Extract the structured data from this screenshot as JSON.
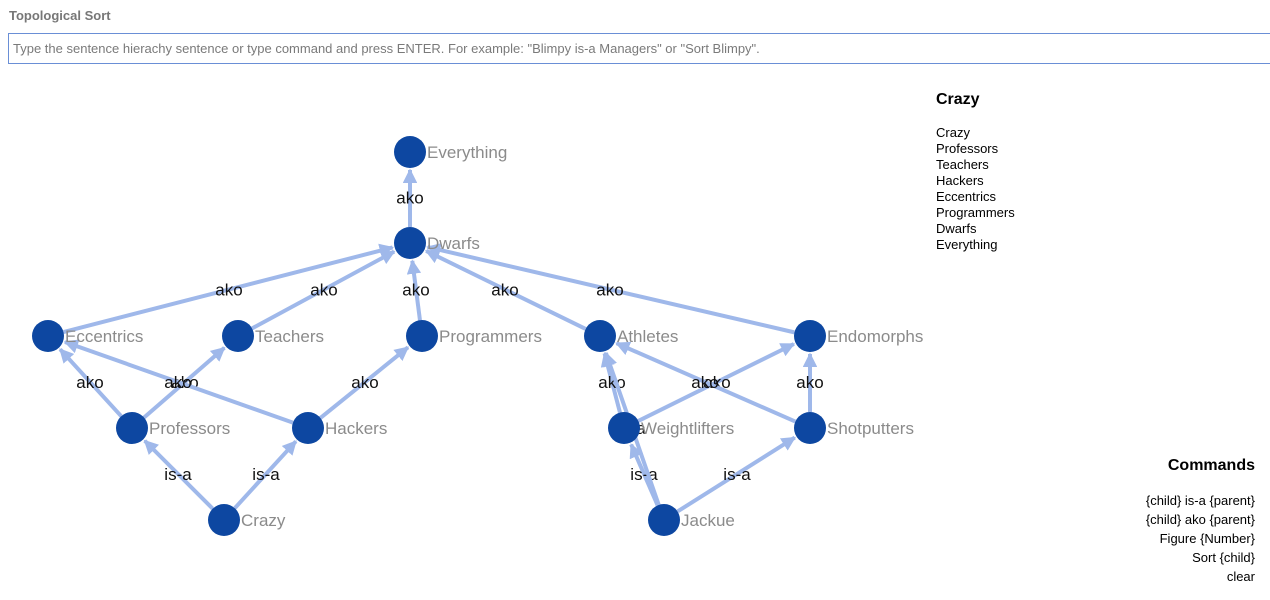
{
  "app": {
    "title": "Topological Sort"
  },
  "command_input": {
    "placeholder": "Type the sentence hierachy sentence or type command and press ENTER. For example: \"Blimpy is-a Managers\" or \"Sort Blimpy\".",
    "value": ""
  },
  "colors": {
    "node": "#0d47a1",
    "edge": "#9fb8ea",
    "node_label": "#8b8b8b"
  },
  "graph": {
    "nodes": [
      {
        "id": "Everything",
        "label": "Everything"
      },
      {
        "id": "Dwarfs",
        "label": "Dwarfs"
      },
      {
        "id": "Eccentrics",
        "label": "Eccentrics"
      },
      {
        "id": "Teachers",
        "label": "Teachers"
      },
      {
        "id": "Programmers",
        "label": "Programmers"
      },
      {
        "id": "Athletes",
        "label": "Athletes"
      },
      {
        "id": "Endomorphs",
        "label": "Endomorphs"
      },
      {
        "id": "Professors",
        "label": "Professors"
      },
      {
        "id": "Hackers",
        "label": "Hackers"
      },
      {
        "id": "Weightlifters",
        "label": "Weightlifters"
      },
      {
        "id": "Shotputters",
        "label": "Shotputters"
      },
      {
        "id": "Crazy",
        "label": "Crazy"
      },
      {
        "id": "Jackue",
        "label": "Jackue"
      }
    ],
    "edges": [
      {
        "from": "Dwarfs",
        "to": "Everything",
        "label": "ako"
      },
      {
        "from": "Eccentrics",
        "to": "Dwarfs",
        "label": "ako"
      },
      {
        "from": "Teachers",
        "to": "Dwarfs",
        "label": "ako"
      },
      {
        "from": "Programmers",
        "to": "Dwarfs",
        "label": "ako"
      },
      {
        "from": "Athletes",
        "to": "Dwarfs",
        "label": "ako"
      },
      {
        "from": "Endomorphs",
        "to": "Dwarfs",
        "label": "ako"
      },
      {
        "from": "Professors",
        "to": "Eccentrics",
        "label": "ako"
      },
      {
        "from": "Professors",
        "to": "Teachers",
        "label": "ako"
      },
      {
        "from": "Hackers",
        "to": "Eccentrics",
        "label": "ako"
      },
      {
        "from": "Hackers",
        "to": "Programmers",
        "label": "ako"
      },
      {
        "from": "Weightlifters",
        "to": "Athletes",
        "label": "ako"
      },
      {
        "from": "Weightlifters",
        "to": "Endomorphs",
        "label": "ako"
      },
      {
        "from": "Shotputters",
        "to": "Athletes",
        "label": "ako"
      },
      {
        "from": "Shotputters",
        "to": "Endomorphs",
        "label": "ako"
      },
      {
        "from": "Crazy",
        "to": "Professors",
        "label": "is-a"
      },
      {
        "from": "Crazy",
        "to": "Hackers",
        "label": "is-a"
      },
      {
        "from": "Jackue",
        "to": "Weightlifters",
        "label": "is-a"
      },
      {
        "from": "Jackue",
        "to": "Athletes",
        "label": "is-a"
      },
      {
        "from": "Jackue",
        "to": "Shotputters",
        "label": "is-a"
      }
    ]
  },
  "sort_result": {
    "title": "Crazy",
    "items": [
      "Crazy",
      "Professors",
      "Teachers",
      "Hackers",
      "Eccentrics",
      "Programmers",
      "Dwarfs",
      "Everything"
    ]
  },
  "commands": {
    "title": "Commands",
    "items": [
      "{child} is-a {parent}",
      "{child} ako {parent}",
      "Figure {Number}",
      "Sort {child}",
      "clear"
    ]
  }
}
